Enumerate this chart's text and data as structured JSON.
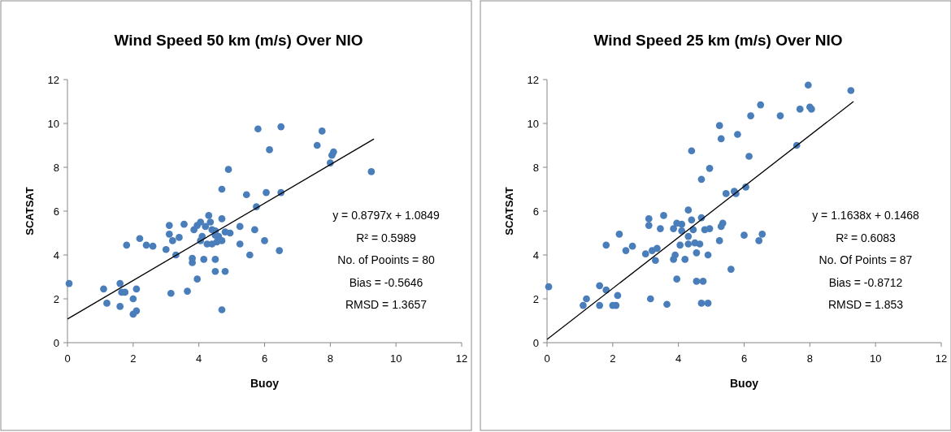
{
  "chart_data": [
    {
      "type": "scatter",
      "title": "Wind Speed 50 km (m/s) Over NIO",
      "xlabel": "Buoy",
      "ylabel": "SCATSAT",
      "xlim": [
        0,
        12
      ],
      "ylim": [
        0,
        12
      ],
      "xticks": [
        0,
        2,
        4,
        6,
        8,
        10,
        12
      ],
      "yticks": [
        0,
        2,
        4,
        6,
        8,
        10,
        12
      ],
      "grid": false,
      "annotations": [
        "y = 0.8797x + 1.0849",
        "R² = 0.5989",
        "No. of Pooints = 80",
        "Bias = -0.5646",
        "RMSD = 1.3657"
      ],
      "series": [
        {
          "marker": "circle",
          "color": "#4a7ebb",
          "x": [
            0.05,
            1.1,
            1.2,
            1.6,
            1.6,
            1.65,
            1.75,
            1.8,
            2.0,
            2.0,
            2.1,
            2.1,
            2.2,
            2.4,
            2.6,
            3.0,
            3.1,
            3.1,
            3.15,
            3.2,
            3.3,
            3.4,
            3.55,
            3.65,
            3.8,
            3.8,
            3.95,
            3.85,
            3.95,
            4.05,
            4.1,
            4.05,
            4.15,
            4.2,
            4.25,
            4.3,
            4.35,
            4.4,
            4.4,
            4.5,
            4.5,
            4.55,
            4.6,
            4.5,
            4.7,
            4.7,
            4.7,
            4.8,
            4.5,
            4.7,
            4.8,
            4.95,
            4.9,
            5.25,
            5.25,
            5.45,
            5.55,
            5.75,
            5.7,
            5.8,
            6.0,
            6.05,
            6.15,
            6.45,
            6.5,
            6.5,
            7.6,
            7.75,
            8.0,
            8.05,
            8.1,
            9.25
          ],
          "values": [
            2.7,
            2.45,
            1.8,
            2.7,
            1.65,
            2.3,
            2.3,
            4.45,
            2.0,
            1.3,
            1.45,
            2.45,
            4.75,
            4.45,
            4.4,
            4.25,
            5.35,
            4.95,
            2.25,
            4.65,
            4.0,
            4.8,
            5.4,
            2.35,
            3.65,
            3.85,
            2.9,
            5.15,
            5.35,
            4.65,
            4.85,
            5.5,
            3.8,
            5.3,
            4.5,
            5.8,
            5.5,
            5.15,
            4.5,
            4.9,
            3.8,
            4.6,
            4.85,
            5.1,
            4.65,
            7.0,
            5.65,
            3.25,
            3.25,
            1.5,
            5.05,
            5.0,
            7.9,
            5.3,
            4.5,
            6.75,
            4.0,
            6.2,
            5.15,
            9.75,
            4.65,
            6.85,
            8.8,
            4.2,
            9.85,
            6.85,
            9.0,
            9.65,
            8.2,
            8.55,
            8.7,
            7.8
          ]
        },
        {
          "type": "line",
          "color": "#000000",
          "x": [
            0,
            9.33
          ],
          "values": [
            1.08,
            9.29
          ]
        }
      ]
    },
    {
      "type": "scatter",
      "title": "Wind Speed 25 km (m/s) Over NIO",
      "xlabel": "Buoy",
      "ylabel": "SCATSAT",
      "xlim": [
        0,
        12
      ],
      "ylim": [
        0,
        12
      ],
      "xticks": [
        0,
        2,
        4,
        6,
        8,
        10,
        12
      ],
      "yticks": [
        0,
        2,
        4,
        6,
        8,
        10,
        12
      ],
      "grid": false,
      "annotations": [
        "y = 1.1638x + 0.1468",
        "R² = 0.6083",
        "No. Of Points = 87",
        "Bias = -0.8712",
        "RMSD = 1.853"
      ],
      "series": [
        {
          "marker": "circle",
          "color": "#4a7ebb",
          "x": [
            0.05,
            1.1,
            1.2,
            1.6,
            1.6,
            1.8,
            1.8,
            2.0,
            2.1,
            2.15,
            2.2,
            2.4,
            2.6,
            3.0,
            3.1,
            3.1,
            3.15,
            3.2,
            3.3,
            3.35,
            3.45,
            3.55,
            3.65,
            3.85,
            3.9,
            3.95,
            3.85,
            3.95,
            4.1,
            4.05,
            4.1,
            4.2,
            4.3,
            4.3,
            4.3,
            4.4,
            4.4,
            4.45,
            4.5,
            4.55,
            4.55,
            4.65,
            4.7,
            4.7,
            4.7,
            4.75,
            4.8,
            4.9,
            4.9,
            4.95,
            4.95,
            5.25,
            5.3,
            5.25,
            5.3,
            5.35,
            5.45,
            5.6,
            5.7,
            5.75,
            5.8,
            6.15,
            6.05,
            6.0,
            6.45,
            6.55,
            6.2,
            6.5,
            7.1,
            7.6,
            7.7,
            7.95,
            8.0,
            8.05,
            9.25
          ],
          "values": [
            2.55,
            1.7,
            2.0,
            2.6,
            1.7,
            2.4,
            4.45,
            1.7,
            1.7,
            2.15,
            4.95,
            4.2,
            4.4,
            4.05,
            5.65,
            5.35,
            2.0,
            4.2,
            3.75,
            4.3,
            5.2,
            5.8,
            1.75,
            3.8,
            4.0,
            2.9,
            5.2,
            5.45,
            5.4,
            4.45,
            5.1,
            3.8,
            6.05,
            4.85,
            4.5,
            8.75,
            5.6,
            5.15,
            4.55,
            2.8,
            4.1,
            4.5,
            1.8,
            7.45,
            5.7,
            2.8,
            5.15,
            4.0,
            1.8,
            7.95,
            5.2,
            9.9,
            9.3,
            4.65,
            5.3,
            5.45,
            6.8,
            3.35,
            6.9,
            6.8,
            9.5,
            8.5,
            7.1,
            4.9,
            4.65,
            4.95,
            10.35,
            10.85,
            10.35,
            9.0,
            10.65,
            11.75,
            10.75,
            10.65,
            11.5
          ]
        },
        {
          "type": "line",
          "color": "#000000",
          "x": [
            0,
            9.33
          ],
          "values": [
            0.15,
            11.0
          ]
        }
      ]
    }
  ]
}
